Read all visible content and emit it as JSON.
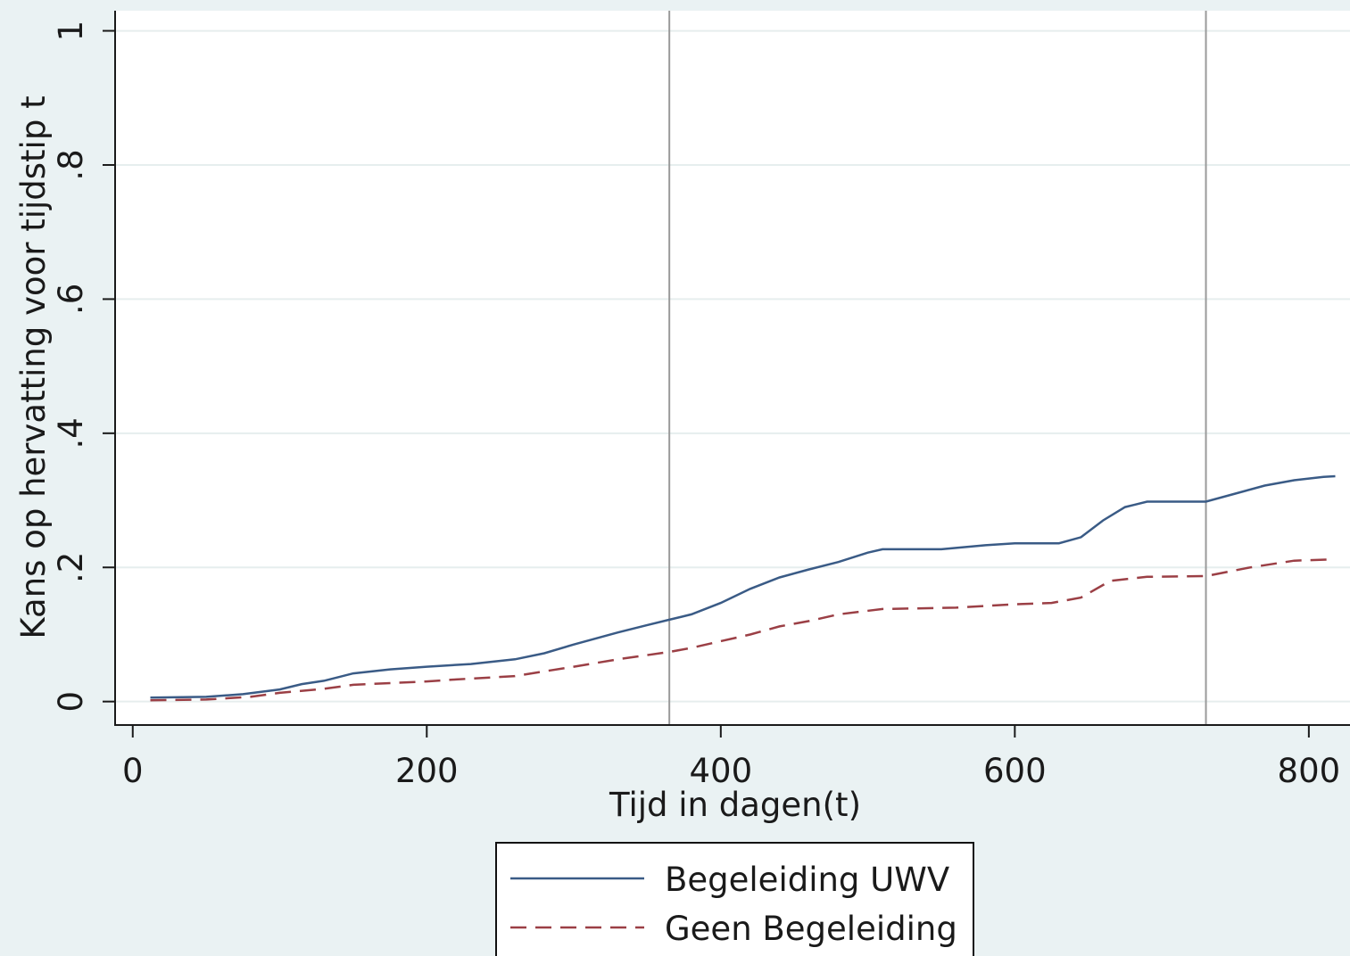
{
  "chart_data": {
    "type": "line",
    "xlabel": "Tijd in dagen(t)",
    "ylabel": "Kans op hervatting voor tijdstip t",
    "xlim": [
      -12,
      828
    ],
    "ylim": [
      -0.035,
      1.03
    ],
    "x_ticks": [
      0,
      200,
      400,
      600,
      800
    ],
    "x_tick_labels": [
      "0",
      "200",
      "400",
      "600",
      "800"
    ],
    "y_ticks": [
      0,
      0.2,
      0.4,
      0.6,
      0.8,
      1
    ],
    "y_tick_labels": [
      "0",
      ".2",
      ".4",
      ".6",
      ".8",
      "1"
    ],
    "grid": true,
    "reference_lines_x": [
      365,
      730
    ],
    "legend_position": "bottom",
    "series": [
      {
        "name": "Begeleiding UWV",
        "color": "#3a5b86",
        "style": "solid",
        "points": [
          [
            12,
            0.006
          ],
          [
            50,
            0.007
          ],
          [
            75,
            0.011
          ],
          [
            100,
            0.018
          ],
          [
            115,
            0.026
          ],
          [
            130,
            0.031
          ],
          [
            150,
            0.042
          ],
          [
            175,
            0.048
          ],
          [
            200,
            0.052
          ],
          [
            230,
            0.056
          ],
          [
            260,
            0.063
          ],
          [
            280,
            0.072
          ],
          [
            300,
            0.085
          ],
          [
            330,
            0.103
          ],
          [
            350,
            0.114
          ],
          [
            365,
            0.122
          ],
          [
            380,
            0.13
          ],
          [
            400,
            0.147
          ],
          [
            420,
            0.168
          ],
          [
            440,
            0.185
          ],
          [
            460,
            0.197
          ],
          [
            480,
            0.208
          ],
          [
            500,
            0.222
          ],
          [
            510,
            0.227
          ],
          [
            550,
            0.227
          ],
          [
            580,
            0.233
          ],
          [
            600,
            0.236
          ],
          [
            630,
            0.236
          ],
          [
            645,
            0.245
          ],
          [
            660,
            0.27
          ],
          [
            675,
            0.29
          ],
          [
            690,
            0.298
          ],
          [
            730,
            0.298
          ],
          [
            750,
            0.31
          ],
          [
            770,
            0.322
          ],
          [
            790,
            0.33
          ],
          [
            810,
            0.335
          ],
          [
            818,
            0.336
          ]
        ]
      },
      {
        "name": "Geen Begeleiding",
        "color": "#9b3f45",
        "style": "dashed",
        "points": [
          [
            12,
            0.002
          ],
          [
            50,
            0.003
          ],
          [
            80,
            0.007
          ],
          [
            100,
            0.013
          ],
          [
            130,
            0.019
          ],
          [
            150,
            0.025
          ],
          [
            200,
            0.03
          ],
          [
            220,
            0.033
          ],
          [
            260,
            0.038
          ],
          [
            280,
            0.045
          ],
          [
            300,
            0.052
          ],
          [
            330,
            0.063
          ],
          [
            365,
            0.074
          ],
          [
            380,
            0.08
          ],
          [
            400,
            0.09
          ],
          [
            420,
            0.1
          ],
          [
            440,
            0.112
          ],
          [
            460,
            0.12
          ],
          [
            480,
            0.13
          ],
          [
            510,
            0.138
          ],
          [
            560,
            0.14
          ],
          [
            600,
            0.145
          ],
          [
            625,
            0.147
          ],
          [
            645,
            0.155
          ],
          [
            665,
            0.18
          ],
          [
            690,
            0.186
          ],
          [
            730,
            0.187
          ],
          [
            760,
            0.2
          ],
          [
            790,
            0.21
          ],
          [
            818,
            0.212
          ]
        ]
      }
    ]
  }
}
